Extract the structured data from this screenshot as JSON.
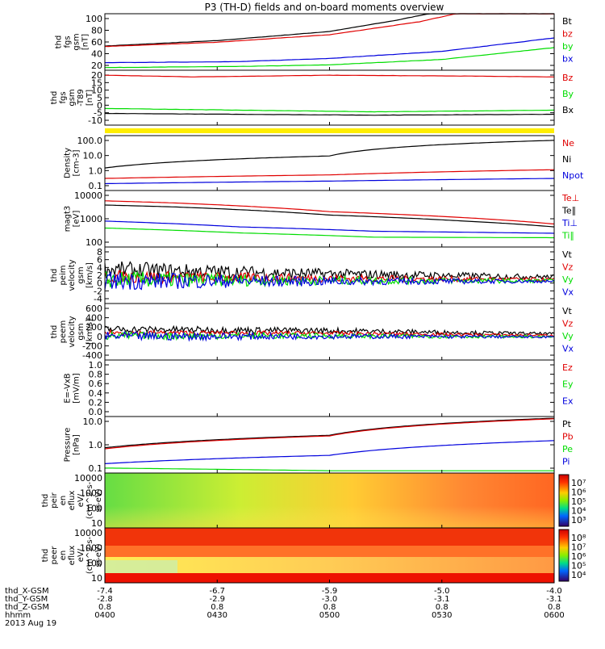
{
  "title": "P3 (TH-D) fields and on-board moments overview",
  "colors": {
    "black": "#000000",
    "red": "#e00000",
    "green": "#00dd00",
    "blue": "#0000dd",
    "yellow": "#ffee00"
  },
  "chart_data": [
    {
      "type": "line",
      "name": "fgs_gsm",
      "ylabel": [
        "thd",
        "fgs",
        "gsm",
        "[nT]"
      ],
      "yticks": [
        "100",
        "80",
        "60",
        "40",
        "20"
      ],
      "ylim": [
        0,
        105
      ],
      "legend": [
        {
          "label": "Bt",
          "color": "#000000"
        },
        {
          "label": "bz",
          "color": "#e00000"
        },
        {
          "label": "by",
          "color": "#00dd00"
        },
        {
          "label": "bx",
          "color": "#0000dd"
        }
      ],
      "series": [
        {
          "name": "Bt",
          "color": "#000000",
          "x": [
            0,
            0.25,
            0.5,
            0.65,
            0.72,
            1.0
          ],
          "y": [
            45,
            55,
            72,
            93,
            105,
            105
          ]
        },
        {
          "name": "bz",
          "color": "#e00000",
          "x": [
            0,
            0.25,
            0.5,
            0.7,
            0.78,
            1.0
          ],
          "y": [
            44,
            52,
            66,
            90,
            105,
            105
          ]
        },
        {
          "name": "by",
          "color": "#00dd00",
          "x": [
            0,
            0.3,
            0.5,
            0.75,
            1.0
          ],
          "y": [
            5,
            7,
            10,
            20,
            42
          ]
        },
        {
          "name": "bx",
          "color": "#0000dd",
          "x": [
            0,
            0.3,
            0.5,
            0.75,
            1.0
          ],
          "y": [
            14,
            16,
            22,
            35,
            60
          ]
        }
      ]
    },
    {
      "type": "line",
      "name": "fgs_gsm_detrended",
      "ylabel": [
        "thd",
        "fgs",
        "gsm",
        "-T89",
        "[nT]"
      ],
      "yticks": [
        "20",
        "15",
        "10",
        "5",
        "0",
        "-5",
        "-10"
      ],
      "ylim": [
        -13,
        20
      ],
      "legend": [
        {
          "label": "Bz",
          "color": "#e00000"
        },
        {
          "label": "By",
          "color": "#00dd00"
        },
        {
          "label": "Bx",
          "color": "#000000"
        }
      ],
      "series": [
        {
          "name": "Bz",
          "color": "#e00000",
          "x": [
            0,
            0.2,
            0.5,
            0.8,
            1.0
          ],
          "y": [
            17,
            16,
            17,
            16.5,
            16
          ]
        },
        {
          "name": "By",
          "color": "#00dd00",
          "x": [
            0,
            0.3,
            0.6,
            1.0
          ],
          "y": [
            -3,
            -4,
            -5,
            -4
          ]
        },
        {
          "name": "Bx",
          "color": "#000000",
          "x": [
            0,
            0.3,
            0.6,
            1.0
          ],
          "y": [
            -6,
            -6.5,
            -7,
            -6.5
          ]
        }
      ]
    },
    {
      "type": "line",
      "name": "density",
      "log": true,
      "ylabel": [
        "Density",
        "[cm-3]"
      ],
      "yticks": [
        "100.0",
        "10.0",
        "1.0",
        "0.1"
      ],
      "ylim": [
        0.1,
        150
      ],
      "legend": [
        {
          "label": "Ne",
          "color": "#e00000"
        },
        {
          "label": "Ni",
          "color": "#000000"
        },
        {
          "label": "Npot",
          "color": "#0000dd"
        }
      ],
      "series": [
        {
          "name": "Ni",
          "color": "#000000",
          "x": [
            0,
            0.5,
            1.0
          ],
          "y": [
            2.0,
            10,
            80
          ]
        },
        {
          "name": "Ne",
          "color": "#e00000",
          "x": [
            0,
            0.5,
            1.0
          ],
          "y": [
            0.5,
            0.8,
            1.6
          ]
        },
        {
          "name": "Npot",
          "color": "#0000dd",
          "x": [
            0,
            0.5,
            1.0
          ],
          "y": [
            0.25,
            0.35,
            0.5
          ]
        }
      ]
    },
    {
      "type": "line",
      "name": "temperature",
      "log": true,
      "ylabel": [
        "magt3",
        "[eV]"
      ],
      "yticks": [
        "10000",
        "1000",
        "100"
      ],
      "ylim": [
        100,
        12000
      ],
      "legend": [
        {
          "label": "Te⊥",
          "color": "#e00000"
        },
        {
          "label": "Te∥",
          "color": "#000000"
        },
        {
          "label": "Ti⊥",
          "color": "#0000dd"
        },
        {
          "label": "Ti∥",
          "color": "#00dd00"
        }
      ],
      "series": [
        {
          "name": "Te⊥",
          "color": "#e00000",
          "x": [
            0,
            0.15,
            0.5,
            0.8,
            1.0
          ],
          "y": [
            5000,
            4200,
            2000,
            1200,
            700
          ]
        },
        {
          "name": "Te∥",
          "color": "#000000",
          "x": [
            0,
            0.15,
            0.5,
            0.8,
            1.0
          ],
          "y": [
            3500,
            3000,
            1500,
            900,
            550
          ]
        },
        {
          "name": "Ti⊥",
          "color": "#0000dd",
          "x": [
            0,
            0.3,
            0.6,
            1.0
          ],
          "y": [
            900,
            550,
            380,
            320
          ]
        },
        {
          "name": "Ti∥",
          "color": "#00dd00",
          "x": [
            0,
            0.3,
            0.6,
            1.0
          ],
          "y": [
            500,
            330,
            230,
            220
          ]
        }
      ]
    },
    {
      "type": "line",
      "name": "velocity_peim",
      "noisy": true,
      "ylabel": [
        "thd",
        "peim",
        "velocity",
        "gsm",
        "[km/s]"
      ],
      "yticks": [
        "8",
        "6",
        "4",
        "2",
        "0",
        "-2",
        "-4"
      ],
      "ylim": [
        -5,
        8
      ],
      "legend": [
        {
          "label": "Vt",
          "color": "#000000"
        },
        {
          "label": "Vz",
          "color": "#e00000"
        },
        {
          "label": "Vy",
          "color": "#00dd00"
        },
        {
          "label": "Vx",
          "color": "#0000dd"
        }
      ],
      "series": [
        {
          "name": "Vt",
          "color": "#000000",
          "x": [
            0,
            0.5,
            1.0
          ],
          "y": [
            2.8,
            1.8,
            1.1
          ],
          "noise": [
            2.0,
            1.2,
            0.5
          ]
        },
        {
          "name": "Vz",
          "color": "#e00000",
          "x": [
            0,
            0.5,
            1.0
          ],
          "y": [
            1.2,
            0.8,
            0.5
          ],
          "noise": [
            1.5,
            0.9,
            0.4
          ]
        },
        {
          "name": "Vy",
          "color": "#00dd00",
          "x": [
            0,
            0.5,
            1.0
          ],
          "y": [
            0.5,
            0.3,
            0.2
          ],
          "noise": [
            2.0,
            1.0,
            0.4
          ]
        },
        {
          "name": "Vx",
          "color": "#0000dd",
          "x": [
            0,
            0.5,
            1.0
          ],
          "y": [
            0.2,
            0.1,
            0.1
          ],
          "noise": [
            2.2,
            1.0,
            0.3
          ]
        }
      ]
    },
    {
      "type": "line",
      "name": "velocity_peem",
      "noisy": true,
      "ylabel": [
        "thd",
        "peem",
        "velocity",
        "gsm",
        "[km/s]"
      ],
      "yticks": [
        "600",
        "400",
        "200",
        "0",
        "-200",
        "-400"
      ],
      "ylim": [
        -450,
        650
      ],
      "legend": [
        {
          "label": "Vt",
          "color": "#000000"
        },
        {
          "label": "Vz",
          "color": "#e00000"
        },
        {
          "label": "Vy",
          "color": "#00dd00"
        },
        {
          "label": "Vx",
          "color": "#0000dd"
        }
      ],
      "series": [
        {
          "name": "Vt",
          "color": "#000000",
          "x": [
            0,
            0.5,
            1.0
          ],
          "y": [
            150,
            120,
            60
          ],
          "noise": [
            70,
            60,
            25
          ]
        },
        {
          "name": "Vz",
          "color": "#e00000",
          "x": [
            0,
            0.5,
            1.0
          ],
          "y": [
            80,
            70,
            30
          ],
          "noise": [
            50,
            40,
            20
          ]
        },
        {
          "name": "Vy",
          "color": "#00dd00",
          "x": [
            0,
            0.5,
            1.0
          ],
          "y": [
            20,
            20,
            0
          ],
          "noise": [
            80,
            50,
            20
          ]
        },
        {
          "name": "Vx",
          "color": "#0000dd",
          "x": [
            0,
            0.5,
            1.0
          ],
          "y": [
            10,
            10,
            0
          ],
          "noise": [
            90,
            50,
            20
          ]
        }
      ]
    },
    {
      "type": "line",
      "name": "e_field",
      "ylabel": [
        "E=-VxB",
        "[mV/m]"
      ],
      "yticks": [
        "1.0",
        "0.8",
        "0.6",
        "0.4",
        "0.2",
        "0.0"
      ],
      "ylim": [
        0,
        1
      ],
      "legend": [
        {
          "label": "Ez",
          "color": "#e00000"
        },
        {
          "label": "Ey",
          "color": "#00dd00"
        },
        {
          "label": "Ex",
          "color": "#0000dd"
        }
      ],
      "series": []
    },
    {
      "type": "line",
      "name": "pressure",
      "log": true,
      "ylabel": [
        "Pressure",
        "[nPa]"
      ],
      "yticks": [
        "10.0",
        "1.0",
        "0.1"
      ],
      "ylim": [
        0.08,
        20
      ],
      "legend": [
        {
          "label": "Pt",
          "color": "#000000"
        },
        {
          "label": "Pb",
          "color": "#e00000"
        },
        {
          "label": "Pe",
          "color": "#00dd00"
        },
        {
          "label": "Pi",
          "color": "#0000dd"
        }
      ],
      "series": [
        {
          "name": "Pt",
          "color": "#000000",
          "x": [
            0,
            0.5,
            1.0
          ],
          "y": [
            0.95,
            3.2,
            17
          ]
        },
        {
          "name": "Pb",
          "color": "#e00000",
          "x": [
            0,
            0.5,
            1.0
          ],
          "y": [
            0.85,
            3.0,
            16
          ]
        },
        {
          "name": "Pi",
          "color": "#0000dd",
          "x": [
            0,
            0.5,
            1.0
          ],
          "y": [
            0.2,
            0.45,
            1.9
          ]
        },
        {
          "name": "Pe",
          "color": "#00dd00",
          "x": [
            0,
            0.5,
            1.0
          ],
          "y": [
            0.13,
            0.1,
            0.1
          ]
        }
      ]
    },
    {
      "type": "heatmap",
      "name": "peir_en_eflux",
      "ylabel": [
        "thd",
        "peir",
        "en",
        "eflux",
        "eV/",
        "(cm^2-s-",
        "sr-eV)"
      ],
      "yticks": [
        "10000",
        "1000",
        "100",
        "10"
      ],
      "colorbar_ticks": [
        "10⁷",
        "10⁶",
        "10⁵",
        "10⁴",
        "10³"
      ]
    },
    {
      "type": "heatmap",
      "name": "peer_en_eflux",
      "ylabel": [
        "thd",
        "peer",
        "en",
        "eflux",
        "eV/",
        "(cm^2-s-",
        "sr-eV)"
      ],
      "yticks": [
        "10000",
        "1000",
        "100",
        "10"
      ],
      "colorbar_ticks": [
        "10⁸",
        "10⁷",
        "10⁶",
        "10⁵",
        "10⁴"
      ]
    }
  ],
  "xaxis": {
    "row_labels": [
      "thd_X-GSM",
      "thd_Y-GSM",
      "thd_Z-GSM",
      "hhmm",
      "2013 Aug 19"
    ],
    "columns": [
      {
        "x": "-7.4",
        "y": "-2.8",
        "z": "0.8",
        "hhmm": "0400"
      },
      {
        "x": "-6.7",
        "y": "-2.9",
        "z": "0.8",
        "hhmm": "0430"
      },
      {
        "x": "-5.9",
        "y": "-3.0",
        "z": "0.8",
        "hhmm": "0500"
      },
      {
        "x": "-5.0",
        "y": "-3.1",
        "z": "0.8",
        "hhmm": "0530"
      },
      {
        "x": "-4.0",
        "y": "-3.1",
        "z": "0.8",
        "hhmm": "0600"
      }
    ]
  }
}
